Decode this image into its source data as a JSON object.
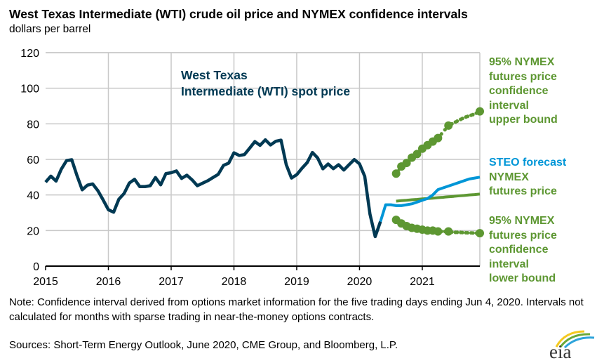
{
  "title": "West Texas Intermediate (WTI) crude oil price and NYMEX confidence intervals",
  "units": "dollars per barrel",
  "note": "Note: Confidence interval derived from options market information for the five trading days ending Jun 4, 2020. Intervals not calculated for months with sparse trading in near-the-money options contracts.",
  "sources": "Sources: Short-Term Energy Outlook, June 2020, CME Group, and Bloomberg, L.P.",
  "logo_text": "eia",
  "labels": {
    "wti": [
      "West Texas",
      "Intermediate (WTI) spot price"
    ],
    "upper": [
      "95% NYMEX",
      "futures price",
      "confidence",
      "interval",
      "upper bound"
    ],
    "steo": "STEO forecast",
    "nymex": [
      "NYMEX",
      "futures price"
    ],
    "lower": [
      "95% NYMEX",
      "futures price",
      "confidence",
      "interval",
      "lower bound"
    ]
  },
  "colors": {
    "wti": "#003953",
    "steo": "#0096d7",
    "nymex": "#5d9732",
    "grid": "#c8c8c8"
  },
  "chart_data": {
    "type": "line",
    "title": "West Texas Intermediate (WTI) crude oil price and NYMEX confidence intervals",
    "ylabel": "dollars per barrel",
    "ylim": [
      0,
      120
    ],
    "yticks": [
      "0",
      "20",
      "40",
      "60",
      "80",
      "100",
      "120"
    ],
    "xlim": [
      "2015-01",
      "2021-12"
    ],
    "xticks": [
      "2015",
      "2016",
      "2017",
      "2018",
      "2019",
      "2020",
      "2021"
    ],
    "grid": true,
    "series": [
      {
        "name": "West Texas Intermediate (WTI) spot price",
        "start": "2015-01",
        "values": [
          47.2,
          50.6,
          47.8,
          54.5,
          59.3,
          59.8,
          50.9,
          42.9,
          45.5,
          46.2,
          42.4,
          37.2,
          31.7,
          30.3,
          37.6,
          40.8,
          46.7,
          48.8,
          44.7,
          44.7,
          45.2,
          49.8,
          45.7,
          52.0,
          52.5,
          53.5,
          49.3,
          51.1,
          48.5,
          45.2,
          46.6,
          48.0,
          49.8,
          51.6,
          56.6,
          57.9,
          63.7,
          62.2,
          62.7,
          66.3,
          70.0,
          67.9,
          71.0,
          68.1,
          70.2,
          70.8,
          57.0,
          49.5,
          51.4,
          55.0,
          58.2,
          63.9,
          60.8,
          54.7,
          57.4,
          54.8,
          57.0,
          54.0,
          57.0,
          59.9,
          57.5,
          50.5,
          29.2,
          16.6,
          25.0
        ]
      },
      {
        "name": "STEO forecast",
        "start": "2020-05",
        "values": [
          25.0,
          34.5,
          34.5,
          34.0,
          34.0,
          34.5,
          35.0,
          36.0,
          37.0,
          38.0,
          40.0,
          43.0,
          44.0,
          45.0,
          46.0,
          47.0,
          48.0,
          49.0,
          49.5,
          50.0
        ]
      },
      {
        "name": "NYMEX futures price",
        "start": "2020-08",
        "values": [
          36.5,
          36.8,
          37.0,
          37.3,
          37.5,
          37.8,
          38.0,
          38.2,
          38.5,
          38.7,
          39.0,
          39.2,
          39.5,
          39.7,
          40.0,
          40.2,
          40.5
        ]
      },
      {
        "name": "95% NYMEX futures price confidence interval upper bound",
        "start": "2020-08",
        "values": [
          52,
          56,
          58,
          61,
          63,
          66,
          68,
          70,
          72,
          75.5,
          79,
          80.5,
          82,
          83.5,
          84.5,
          85.5,
          87
        ],
        "sparse": [
          false,
          false,
          false,
          false,
          false,
          false,
          false,
          false,
          false,
          true,
          false,
          true,
          true,
          true,
          true,
          true,
          false
        ]
      },
      {
        "name": "95% NYMEX futures price confidence interval lower bound",
        "start": "2020-08",
        "values": [
          26,
          24,
          22.5,
          21.5,
          21,
          20.5,
          20,
          20,
          19.5,
          19.5,
          19.5,
          19,
          19,
          18.8,
          18.7,
          18.6,
          18.5
        ],
        "sparse": [
          false,
          false,
          false,
          false,
          false,
          false,
          false,
          false,
          false,
          true,
          false,
          true,
          true,
          true,
          true,
          true,
          false
        ]
      }
    ]
  }
}
